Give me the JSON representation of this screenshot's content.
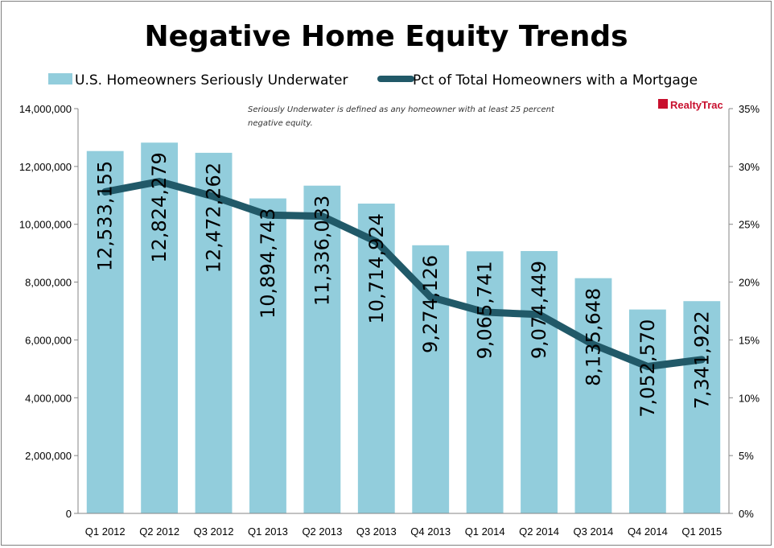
{
  "chart_data": {
    "type": "bar",
    "title": "Negative Home Equity Trends",
    "categories": [
      "Q1 2012",
      "Q2 2012",
      "Q3 2012",
      "Q1 2013",
      "Q2 2013",
      "Q3 2013",
      "Q4 2013",
      "Q1 2014",
      "Q2 2014",
      "Q3 2014",
      "Q4 2014",
      "Q1 2015"
    ],
    "series": [
      {
        "name": "U.S. Homeowners Seriously Underwater",
        "type": "bar",
        "axis": "left",
        "color": "#92cddc",
        "values": [
          12533155,
          12824279,
          12472262,
          10894743,
          11336033,
          10714924,
          9274126,
          9065741,
          9074449,
          8135648,
          7052570,
          7341922
        ],
        "labels": [
          "12,533,155",
          "12,824,279",
          "12,472,262",
          "10,894,743",
          "11,336,033",
          "10,714,924",
          "9,274,126",
          "9,065,741",
          "9,074,449",
          "8,135,648",
          "7,052,570",
          "7,341,922"
        ]
      },
      {
        "name": "Pct of Total Homeowners with a Mortgage",
        "type": "line",
        "axis": "right",
        "color": "#215968",
        "values": [
          27.8,
          28.7,
          27.4,
          25.8,
          25.7,
          23.5,
          18.7,
          17.4,
          17.2,
          14.6,
          12.7,
          13.3
        ]
      }
    ],
    "y_left": {
      "min": 0,
      "max": 14000000,
      "step": 2000000,
      "ticks": [
        "0",
        "2,000,000",
        "4,000,000",
        "6,000,000",
        "8,000,000",
        "10,000,000",
        "12,000,000",
        "14,000,000"
      ]
    },
    "y_right": {
      "min": 0,
      "max": 35,
      "step": 5,
      "ticks": [
        "0%",
        "5%",
        "10%",
        "15%",
        "20%",
        "25%",
        "30%",
        "35%"
      ]
    },
    "grid": false,
    "legend_position": "top",
    "annotation": [
      "Seriously Underwater is defined as any homeowner with at least 25 percent",
      "negative equity."
    ],
    "logo_text": "RealtyTrac"
  }
}
